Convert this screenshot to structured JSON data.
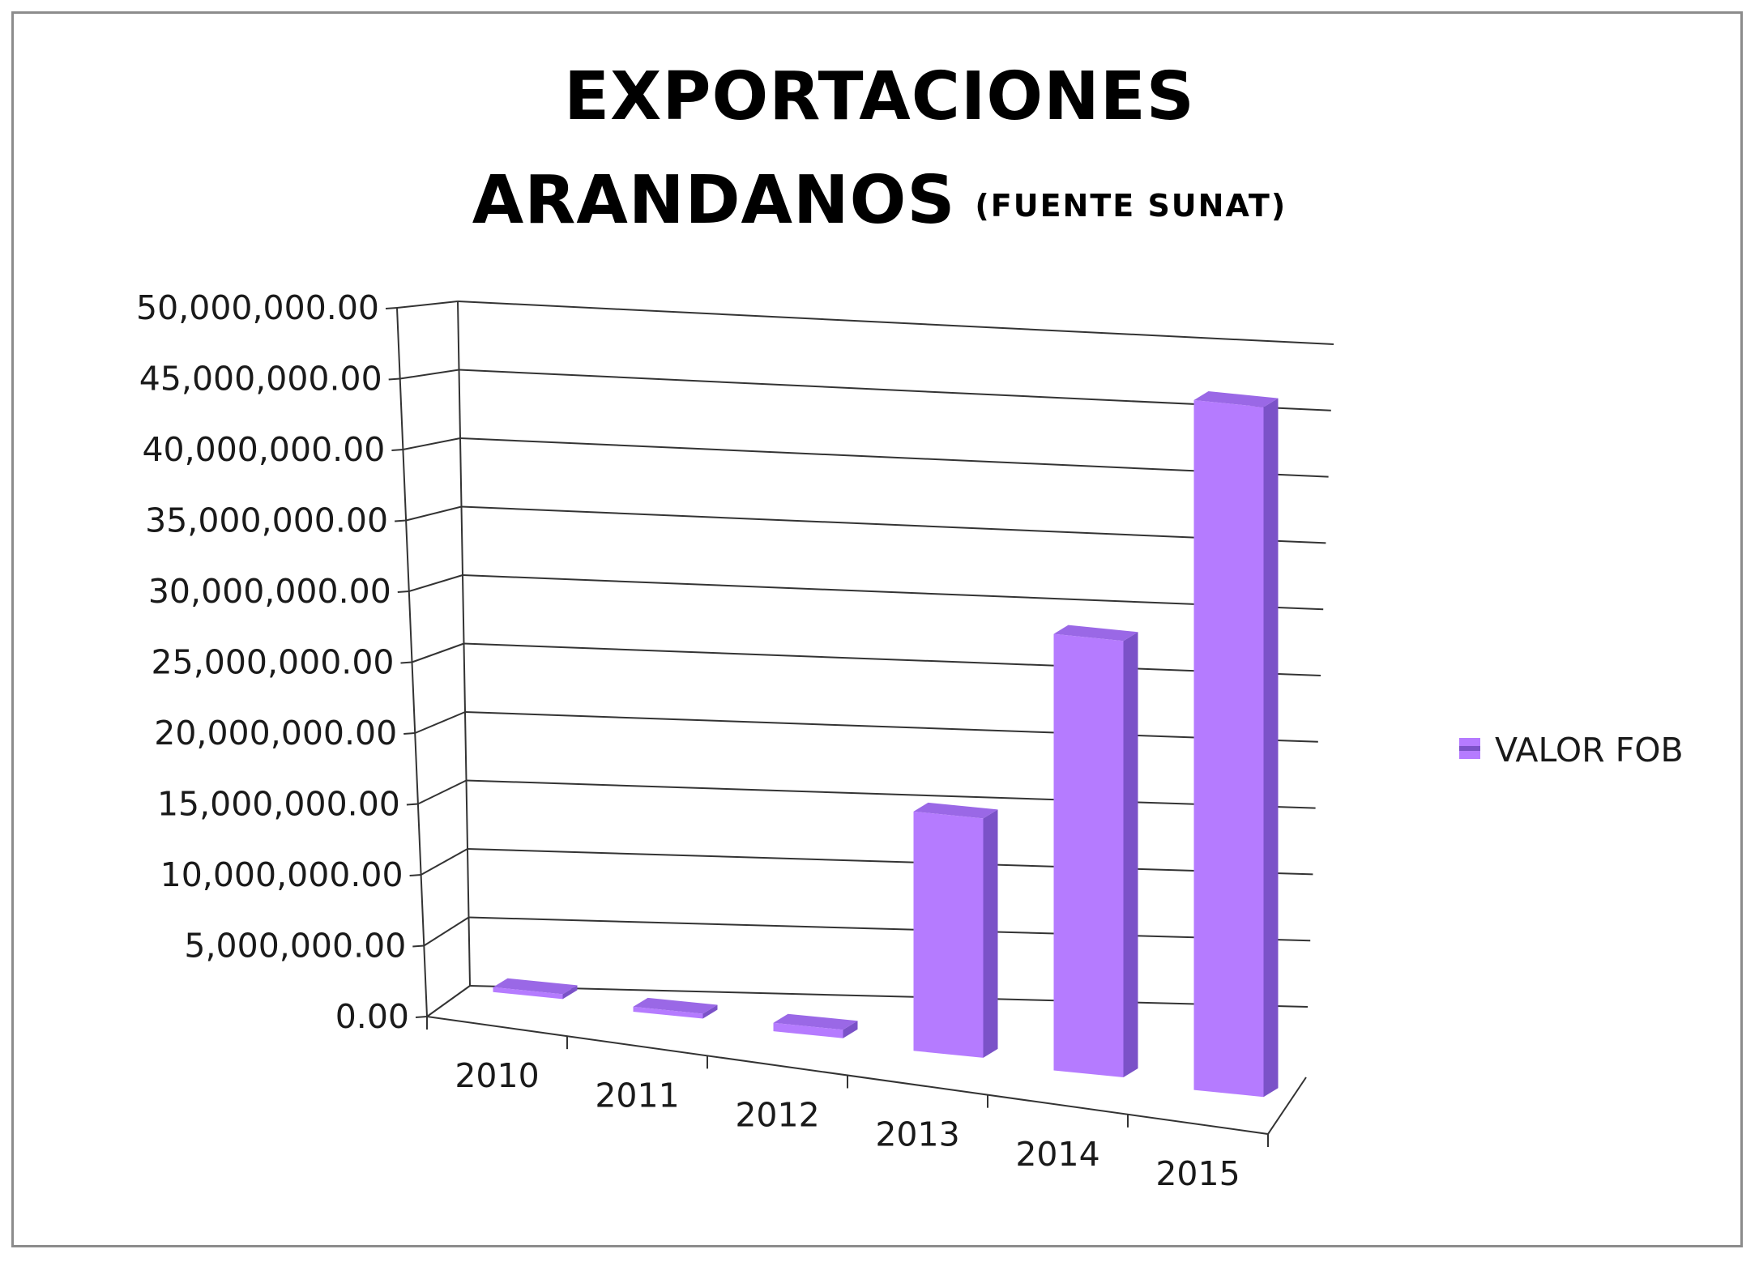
{
  "chart_data": {
    "type": "bar",
    "title_line1": "EXPORTACIONES",
    "title_line2": "ARANDANOS",
    "title_source": "(FUENTE SUNAT)",
    "xlabel": "",
    "ylabel": "",
    "categories": [
      "2010",
      "2011",
      "2012",
      "2013",
      "2014",
      "2015"
    ],
    "series": [
      {
        "name": "VALOR FOB",
        "values": [
          150000,
          350000,
          600000,
          17000000,
          31000000,
          49000000
        ]
      }
    ],
    "ylim": [
      0,
      50000000
    ],
    "yticks": [
      "0.00",
      "5,000,000.00",
      "10,000,000.00",
      "15,000,000.00",
      "20,000,000.00",
      "25,000,000.00",
      "30,000,000.00",
      "35,000,000.00",
      "40,000,000.00",
      "45,000,000.00",
      "50,000,000.00"
    ],
    "grid": true,
    "legend": "right",
    "colors": {
      "bar_front": "#b57bff",
      "bar_side": "#7b52c8",
      "bar_top": "#9a68e6",
      "grid": "#333333",
      "frame": "#8c8c8c"
    }
  }
}
